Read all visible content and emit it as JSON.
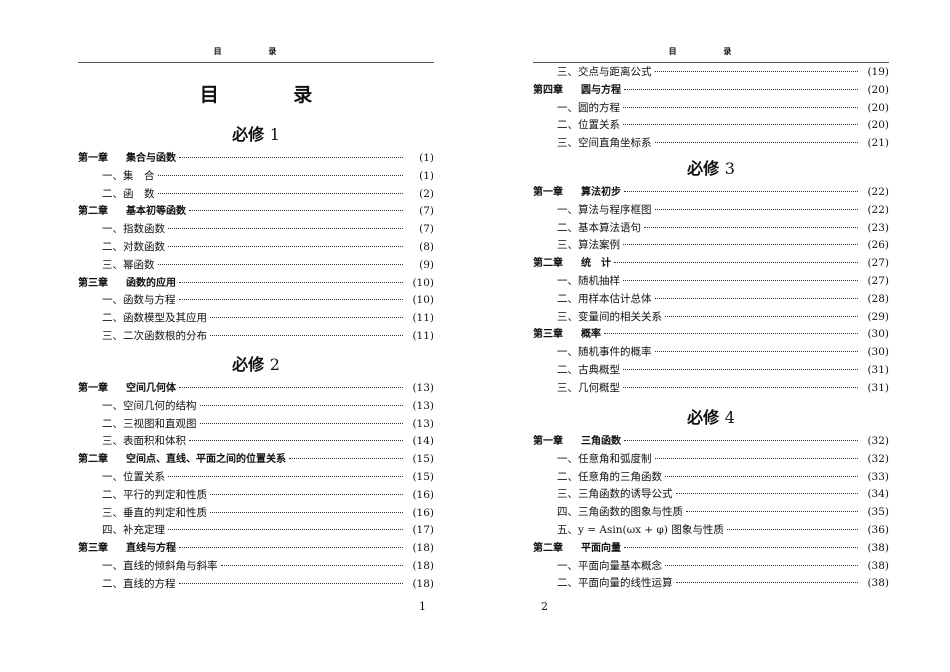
{
  "pages": [
    {
      "running_header": "目 录",
      "title": "目 录",
      "page_number": "1",
      "sections": [
        {
          "heading": "必修",
          "heading_num": "1",
          "entries": [
            {
              "type": "chap",
              "chapter": "第一章",
              "title": "集合与函数",
              "page": "(1)"
            },
            {
              "type": "sub",
              "title": "一、集　合",
              "page": "(1)"
            },
            {
              "type": "sub",
              "title": "二、函　数",
              "page": "(2)"
            },
            {
              "type": "chap",
              "chapter": "第二章",
              "title": "基本初等函数",
              "page": "(7)"
            },
            {
              "type": "sub",
              "title": "一、指数函数",
              "page": "(7)"
            },
            {
              "type": "sub",
              "title": "二、对数函数",
              "page": "(8)"
            },
            {
              "type": "sub",
              "title": "三、幂函数",
              "page": "(9)"
            },
            {
              "type": "chap",
              "chapter": "第三章",
              "title": "函数的应用",
              "page": "(10)"
            },
            {
              "type": "sub",
              "title": "一、函数与方程",
              "page": "(10)"
            },
            {
              "type": "sub",
              "title": "二、函数模型及其应用",
              "page": "(11)"
            },
            {
              "type": "sub",
              "title": "三、二次函数根的分布",
              "page": "(11)"
            }
          ]
        },
        {
          "heading": "必修",
          "heading_num": "2",
          "entries": [
            {
              "type": "chap",
              "chapter": "第一章",
              "title": "空间几何体",
              "page": "(13)"
            },
            {
              "type": "sub",
              "title": "一、空间几何的结构",
              "page": "(13)"
            },
            {
              "type": "sub",
              "title": "二、三视图和直观图",
              "page": "(13)"
            },
            {
              "type": "sub",
              "title": "三、表面积和体积",
              "page": "(14)"
            },
            {
              "type": "chap",
              "chapter": "第二章",
              "title": "空间点、直线、平面之间的位置关系",
              "page": "(15)"
            },
            {
              "type": "sub",
              "title": "一、位置关系",
              "page": "(15)"
            },
            {
              "type": "sub",
              "title": "二、平行的判定和性质",
              "page": "(16)"
            },
            {
              "type": "sub",
              "title": "三、垂直的判定和性质",
              "page": "(16)"
            },
            {
              "type": "sub",
              "title": "四、补充定理",
              "page": "(17)"
            },
            {
              "type": "chap",
              "chapter": "第三章",
              "title": "直线与方程",
              "page": "(18)"
            },
            {
              "type": "sub",
              "title": "一、直线的倾斜角与斜率",
              "page": "(18)"
            },
            {
              "type": "sub",
              "title": "二、直线的方程",
              "page": "(18)"
            }
          ]
        }
      ]
    },
    {
      "running_header": "目 录",
      "page_number": "2",
      "sections": [
        {
          "heading": "",
          "heading_num": "",
          "entries": [
            {
              "type": "sub",
              "title": "三、交点与距离公式",
              "page": "(19)"
            },
            {
              "type": "chap",
              "chapter": "第四章",
              "title": "圆与方程",
              "page": "(20)"
            },
            {
              "type": "sub",
              "title": "一、圆的方程",
              "page": "(20)"
            },
            {
              "type": "sub",
              "title": "二、位置关系",
              "page": "(20)"
            },
            {
              "type": "sub",
              "title": "三、空间直角坐标系",
              "page": "(21)"
            }
          ]
        },
        {
          "heading": "必修",
          "heading_num": "3",
          "entries": [
            {
              "type": "chap",
              "chapter": "第一章",
              "title": "算法初步",
              "page": "(22)"
            },
            {
              "type": "sub",
              "title": "一、算法与程序框图",
              "page": "(22)"
            },
            {
              "type": "sub",
              "title": "二、基本算法语句",
              "page": "(23)"
            },
            {
              "type": "sub",
              "title": "三、算法案例",
              "page": "(26)"
            },
            {
              "type": "chap",
              "chapter": "第二章",
              "title": "统　计",
              "page": "(27)"
            },
            {
              "type": "sub",
              "title": "一、随机抽样",
              "page": "(27)"
            },
            {
              "type": "sub",
              "title": "二、用样本估计总体",
              "page": "(28)"
            },
            {
              "type": "sub",
              "title": "三、变量间的相关关系",
              "page": "(29)"
            },
            {
              "type": "chap",
              "chapter": "第三章",
              "title": "概率",
              "page": "(30)"
            },
            {
              "type": "sub",
              "title": "一、随机事件的概率",
              "page": "(30)"
            },
            {
              "type": "sub",
              "title": "二、古典概型",
              "page": "(31)"
            },
            {
              "type": "sub",
              "title": "三、几何概型",
              "page": "(31)"
            }
          ]
        },
        {
          "heading": "必修",
          "heading_num": "4",
          "entries": [
            {
              "type": "chap",
              "chapter": "第一章",
              "title": "三角函数",
              "page": "(32)"
            },
            {
              "type": "sub",
              "title": "一、任意角和弧度制",
              "page": "(32)"
            },
            {
              "type": "sub",
              "title": "二、任意角的三角函数",
              "page": "(33)"
            },
            {
              "type": "sub",
              "title": "三、三角函数的诱导公式",
              "page": "(34)"
            },
            {
              "type": "sub",
              "title": "四、三角函数的图象与性质",
              "page": "(35)"
            },
            {
              "type": "sub",
              "title": "五、y = Asin(ωx + φ) 图象与性质",
              "page": "(36)"
            },
            {
              "type": "chap",
              "chapter": "第二章",
              "title": "平面向量",
              "page": "(38)"
            },
            {
              "type": "sub",
              "title": "一、平面向量基本概念",
              "page": "(38)"
            },
            {
              "type": "sub",
              "title": "二、平面向量的线性运算",
              "page": "(38)"
            }
          ]
        }
      ]
    }
  ]
}
